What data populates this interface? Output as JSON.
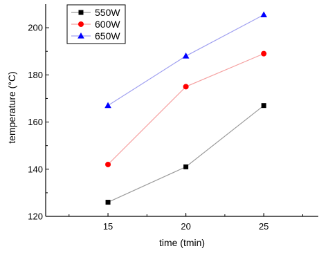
{
  "chart_data": {
    "type": "line",
    "title": "",
    "xlabel": "time (tmin)",
    "ylabel": "temperature (°C)",
    "x": [
      15,
      20,
      25
    ],
    "xlim": [
      11,
      28.5
    ],
    "ylim": [
      120,
      210
    ],
    "xticks": [
      15,
      20,
      25
    ],
    "yticks": [
      120,
      140,
      160,
      180,
      200
    ],
    "grid": false,
    "legend_position": "top-left",
    "series": [
      {
        "name": "550W",
        "values": [
          126,
          141,
          167
        ],
        "marker": "square",
        "marker_color": "#000000",
        "line_color": "#9a9a9a"
      },
      {
        "name": "600W",
        "values": [
          142,
          175,
          189
        ],
        "marker": "circle",
        "marker_color": "#ff0000",
        "line_color": "#f5a0a0"
      },
      {
        "name": "650W",
        "values": [
          167,
          188,
          205.5
        ],
        "marker": "triangle",
        "marker_color": "#0000ff",
        "line_color": "#a0a0f0"
      }
    ]
  }
}
